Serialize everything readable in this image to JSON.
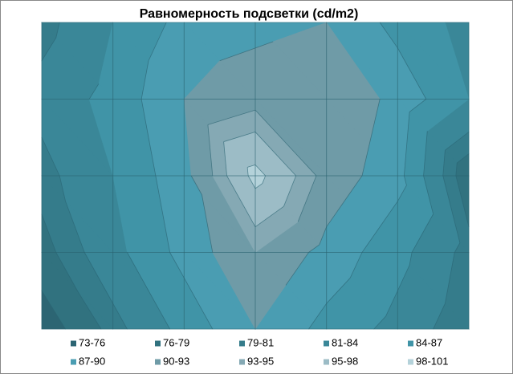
{
  "chart_data": {
    "type": "contour",
    "title": "Равномерность подсветки (cd/m2)",
    "z": [
      [
        80,
        84,
        88,
        89,
        90,
        86,
        83
      ],
      [
        82,
        85,
        90,
        92,
        93,
        89,
        84
      ],
      [
        80,
        84,
        89,
        99,
        92,
        88,
        77
      ],
      [
        78,
        83,
        88,
        93,
        89,
        85,
        80
      ],
      [
        74,
        80,
        85,
        90,
        86,
        83,
        79
      ]
    ],
    "levels": [
      73,
      76,
      79,
      81,
      84,
      87,
      90,
      93,
      95,
      98,
      101
    ],
    "series": [
      {
        "name": "73-76",
        "color": "#2c6573"
      },
      {
        "name": "76-79",
        "color": "#31727f"
      },
      {
        "name": "79-81",
        "color": "#357c8b"
      },
      {
        "name": "81-84",
        "color": "#3a8798"
      },
      {
        "name": "84-87",
        "color": "#4094a7"
      },
      {
        "name": "87-90",
        "color": "#4a9db2"
      },
      {
        "name": "90-93",
        "color": "#6f9ba7"
      },
      {
        "name": "93-95",
        "color": "#85a9b4"
      },
      {
        "name": "95-98",
        "color": "#9cbcc6"
      },
      {
        "name": "98-101",
        "color": "#b4d2da"
      }
    ]
  }
}
